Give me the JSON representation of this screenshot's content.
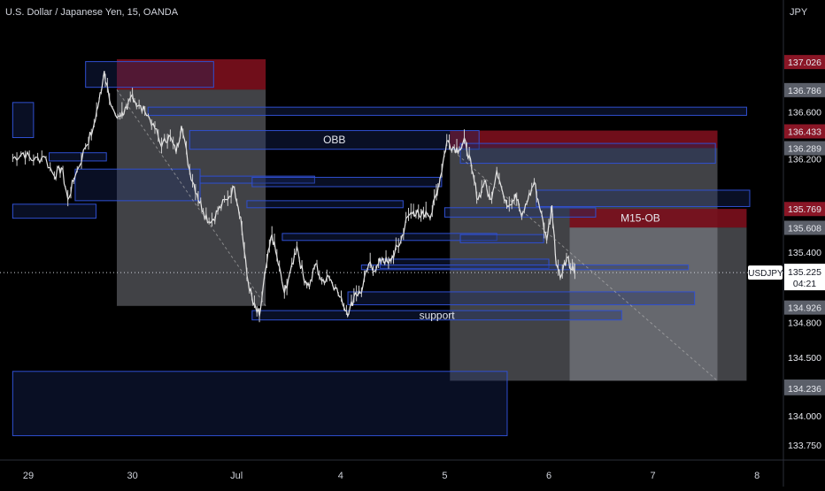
{
  "header": {
    "title": "U.S. Dollar / Japanese Yen, 15, OANDA",
    "currency": "JPY"
  },
  "chart_data": {
    "type": "candlestick",
    "symbol": "USDJPY",
    "ylim": [
      133.6,
      137.4
    ],
    "xlim": [
      -0.15,
      7.0
    ],
    "x_ticks": [
      {
        "label": "29",
        "x": 0
      },
      {
        "label": "30",
        "x": 1
      },
      {
        "label": "Jul",
        "x": 2
      },
      {
        "label": "4",
        "x": 3
      },
      {
        "label": "5",
        "x": 4
      },
      {
        "label": "6",
        "x": 5
      },
      {
        "label": "7",
        "x": 6
      },
      {
        "label": "8",
        "x": 7
      }
    ],
    "y_ticks": [
      137.026,
      136.786,
      136.6,
      136.433,
      136.289,
      136.2,
      135.769,
      135.608,
      135.4,
      134.926,
      134.8,
      134.5,
      134.25,
      134.236,
      134.0,
      133.75
    ],
    "y_tick_labels": [
      "137.026",
      "136.786",
      "136.600",
      "136.433",
      "136.289",
      "136.200",
      "135.769",
      "135.608",
      "135.400",
      "134.926",
      "134.800",
      "134.500",
      "134.250",
      "134.236",
      "134.000",
      "133.750"
    ],
    "highlighted_ticks": [
      "137.026",
      "136.433",
      "135.769"
    ],
    "last_price": {
      "value": 135.225,
      "label": "135.225",
      "countdown": "04:21",
      "symbol": "USDJPY"
    },
    "price_path": [
      [
        -0.15,
        136.2
      ],
      [
        -0.05,
        136.25
      ],
      [
        0.05,
        136.18
      ],
      [
        0.15,
        136.22
      ],
      [
        0.25,
        136.05
      ],
      [
        0.32,
        136.12
      ],
      [
        0.38,
        135.85
      ],
      [
        0.45,
        136.05
      ],
      [
        0.55,
        136.3
      ],
      [
        0.62,
        136.45
      ],
      [
        0.68,
        136.7
      ],
      [
        0.73,
        136.95
      ],
      [
        0.78,
        136.7
      ],
      [
        0.85,
        136.55
      ],
      [
        0.9,
        136.6
      ],
      [
        0.95,
        136.62
      ],
      [
        1.0,
        136.75
      ],
      [
        1.05,
        136.65
      ],
      [
        1.12,
        136.6
      ],
      [
        1.2,
        136.5
      ],
      [
        1.28,
        136.3
      ],
      [
        1.35,
        136.4
      ],
      [
        1.42,
        136.25
      ],
      [
        1.47,
        136.48
      ],
      [
        1.55,
        136.1
      ],
      [
        1.62,
        135.9
      ],
      [
        1.68,
        135.75
      ],
      [
        1.75,
        135.65
      ],
      [
        1.82,
        135.75
      ],
      [
        1.9,
        135.85
      ],
      [
        1.98,
        135.95
      ],
      [
        2.04,
        135.7
      ],
      [
        2.1,
        135.2
      ],
      [
        2.16,
        134.95
      ],
      [
        2.22,
        134.85
      ],
      [
        2.28,
        135.25
      ],
      [
        2.34,
        135.55
      ],
      [
        2.4,
        135.3
      ],
      [
        2.46,
        135.05
      ],
      [
        2.52,
        135.25
      ],
      [
        2.58,
        135.45
      ],
      [
        2.64,
        135.2
      ],
      [
        2.7,
        135.1
      ],
      [
        2.76,
        135.3
      ],
      [
        2.82,
        135.15
      ],
      [
        2.88,
        135.2
      ],
      [
        2.95,
        135.1
      ],
      [
        3.02,
        134.95
      ],
      [
        3.08,
        134.88
      ],
      [
        3.14,
        135.05
      ],
      [
        3.2,
        135.05
      ],
      [
        3.27,
        135.3
      ],
      [
        3.34,
        135.25
      ],
      [
        3.4,
        135.35
      ],
      [
        3.46,
        135.3
      ],
      [
        3.52,
        135.4
      ],
      [
        3.58,
        135.5
      ],
      [
        3.64,
        135.7
      ],
      [
        3.7,
        135.75
      ],
      [
        3.76,
        135.7
      ],
      [
        3.82,
        135.75
      ],
      [
        3.87,
        135.72
      ],
      [
        3.92,
        135.9
      ],
      [
        3.96,
        136.05
      ],
      [
        4.02,
        136.35
      ],
      [
        4.08,
        136.3
      ],
      [
        4.14,
        136.28
      ],
      [
        4.2,
        136.35
      ],
      [
        4.26,
        136.1
      ],
      [
        4.32,
        135.85
      ],
      [
        4.38,
        136.0
      ],
      [
        4.44,
        135.85
      ],
      [
        4.5,
        136.1
      ],
      [
        4.56,
        135.9
      ],
      [
        4.62,
        135.8
      ],
      [
        4.68,
        135.9
      ],
      [
        4.74,
        135.7
      ],
      [
        4.8,
        135.85
      ],
      [
        4.86,
        136.0
      ],
      [
        4.92,
        135.75
      ],
      [
        4.98,
        135.5
      ],
      [
        5.03,
        135.8
      ],
      [
        5.07,
        135.3
      ],
      [
        5.12,
        135.2
      ],
      [
        5.17,
        135.35
      ],
      [
        5.22,
        135.25
      ],
      [
        5.25,
        135.225
      ]
    ],
    "zones": [
      {
        "label": "",
        "kind": "red",
        "x1": 0.85,
        "x2": 2.28,
        "y1": 136.79,
        "y2": 137.05
      },
      {
        "label": "",
        "kind": "grey",
        "x1": 0.85,
        "x2": 2.28,
        "y1": 134.94,
        "y2": 136.79
      },
      {
        "label": "",
        "kind": "red",
        "x1": 4.05,
        "x2": 6.62,
        "y1": 136.29,
        "y2": 136.44
      },
      {
        "label": "",
        "kind": "grey",
        "x1": 4.05,
        "x2": 6.62,
        "y1": 134.3,
        "y2": 136.29
      },
      {
        "label": "M15-OB",
        "kind": "red",
        "x1": 5.2,
        "x2": 6.9,
        "y1": 135.61,
        "y2": 135.77
      },
      {
        "label": "",
        "kind": "grey",
        "x1": 5.2,
        "x2": 6.9,
        "y1": 134.3,
        "y2": 135.61
      },
      {
        "label": "",
        "kind": "blue",
        "x1": -0.15,
        "x2": 0.05,
        "y1": 136.38,
        "y2": 136.68
      },
      {
        "label": "",
        "kind": "blue",
        "x1": 0.55,
        "x2": 1.78,
        "y1": 136.81,
        "y2": 137.03
      },
      {
        "label": "",
        "kind": "blue",
        "x1": 1.15,
        "x2": 6.9,
        "y1": 136.57,
        "y2": 136.64
      },
      {
        "label": "OBB",
        "kind": "blue",
        "x1": 1.55,
        "x2": 4.33,
        "y1": 136.28,
        "y2": 136.44
      },
      {
        "label": "",
        "kind": "blue",
        "x1": 0.2,
        "x2": 0.75,
        "y1": 136.18,
        "y2": 136.25
      },
      {
        "label": "",
        "kind": "blue",
        "x1": 0.45,
        "x2": 1.65,
        "y1": 135.84,
        "y2": 136.11
      },
      {
        "label": "",
        "kind": "blue",
        "x1": -0.15,
        "x2": 0.65,
        "y1": 135.69,
        "y2": 135.81
      },
      {
        "label": "",
        "kind": "blue",
        "x1": 1.65,
        "x2": 2.75,
        "y1": 135.99,
        "y2": 136.05
      },
      {
        "label": "",
        "kind": "blue",
        "x1": 2.15,
        "x2": 3.97,
        "y1": 135.96,
        "y2": 136.04
      },
      {
        "label": "",
        "kind": "blue",
        "x1": 4.15,
        "x2": 6.6,
        "y1": 136.16,
        "y2": 136.33
      },
      {
        "label": "",
        "kind": "blue",
        "x1": 4.88,
        "x2": 6.93,
        "y1": 135.79,
        "y2": 135.93
      },
      {
        "label": "",
        "kind": "blue",
        "x1": 2.1,
        "x2": 3.6,
        "y1": 135.78,
        "y2": 135.84
      },
      {
        "label": "",
        "kind": "blue",
        "x1": 4.0,
        "x2": 5.45,
        "y1": 135.7,
        "y2": 135.78
      },
      {
        "label": "",
        "kind": "blue",
        "x1": 2.44,
        "x2": 4.5,
        "y1": 135.5,
        "y2": 135.56
      },
      {
        "label": "",
        "kind": "blue",
        "x1": 4.15,
        "x2": 4.95,
        "y1": 135.48,
        "y2": 135.55
      },
      {
        "label": "",
        "kind": "blue",
        "x1": 3.38,
        "x2": 5.0,
        "y1": 135.26,
        "y2": 135.34
      },
      {
        "label": "",
        "kind": "blue",
        "x1": 3.2,
        "x2": 6.34,
        "y1": 135.25,
        "y2": 135.29
      },
      {
        "label": "",
        "kind": "blue",
        "x1": 3.07,
        "x2": 6.4,
        "y1": 134.95,
        "y2": 135.06
      },
      {
        "label": "support",
        "kind": "blue",
        "x1": 2.15,
        "x2": 5.7,
        "y1": 134.82,
        "y2": 134.9
      },
      {
        "label": "",
        "kind": "blue",
        "x1": -0.15,
        "x2": 4.6,
        "y1": 133.83,
        "y2": 134.38
      }
    ]
  }
}
